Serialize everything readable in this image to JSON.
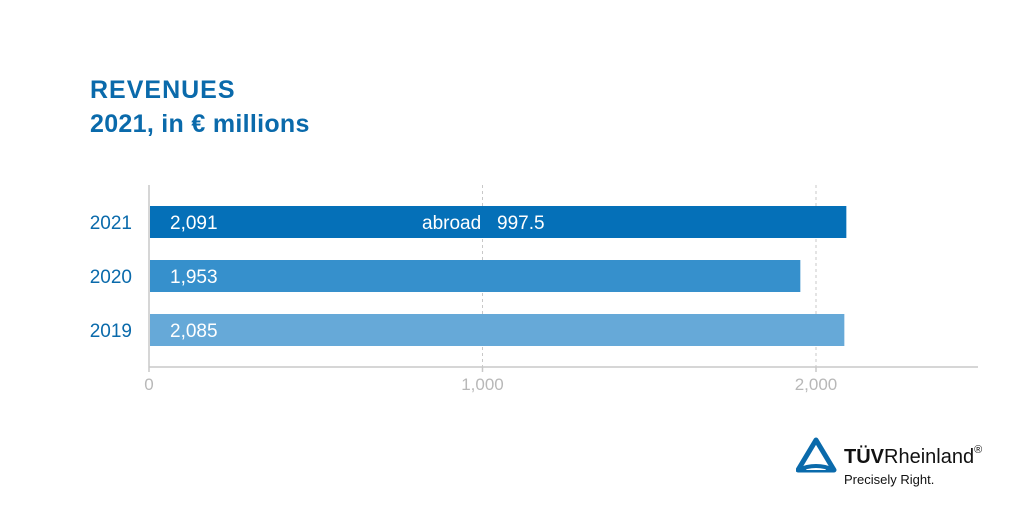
{
  "chart_data": {
    "type": "bar",
    "orientation": "horizontal",
    "title": "REVENUES",
    "subtitle": "2021, in € millions",
    "categories": [
      "2021",
      "2020",
      "2019"
    ],
    "values": [
      2091,
      1953,
      2085
    ],
    "value_labels": [
      "2,091",
      "1,953",
      "2,085"
    ],
    "annotations": [
      {
        "category": "2021",
        "label": "abroad",
        "value_label": "997.5",
        "value": 997.5
      }
    ],
    "xlim": [
      0,
      2500
    ],
    "xticks": [
      0,
      1000,
      2000
    ],
    "xtick_labels": [
      "0",
      "1,000",
      "2,000"
    ],
    "grid": "vertical dashed",
    "bar_colors": [
      "#0570b8",
      "#3690cc",
      "#66a9d8"
    ]
  },
  "brand": {
    "name_bold": "TÜV",
    "name_regular": "Rheinland",
    "registered": "®",
    "tagline": "Precisely Right.",
    "logo_color": "#0a6aab"
  }
}
